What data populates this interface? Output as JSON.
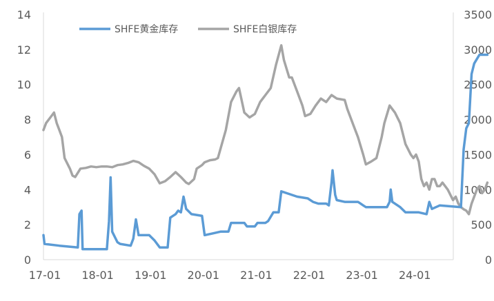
{
  "chart_data": {
    "type": "line",
    "x_ticks": [
      "17-01",
      "18-01",
      "19-01",
      "20-01",
      "21-01",
      "22-01",
      "23-01",
      "24-01"
    ],
    "y_left": {
      "ticks": [
        "0",
        "2",
        "4",
        "6",
        "8",
        "10",
        "12",
        "14"
      ],
      "min": 0,
      "max": 14
    },
    "y_right": {
      "ticks": [
        "0",
        "500",
        "1000",
        "1500",
        "2000",
        "2500",
        "3000",
        "3500"
      ],
      "min": 0,
      "max": 3500
    },
    "grid": false,
    "legend_position": "top",
    "series": [
      {
        "name": "SHFE黄金库存",
        "axis": "left",
        "color": "#5B9BD5",
        "points": [
          [
            0.0,
            1.4
          ],
          [
            0.02,
            0.9
          ],
          [
            0.3,
            0.8
          ],
          [
            0.65,
            0.7
          ],
          [
            0.68,
            2.6
          ],
          [
            0.72,
            2.8
          ],
          [
            0.74,
            0.6
          ],
          [
            1.2,
            0.6
          ],
          [
            1.24,
            2.2
          ],
          [
            1.27,
            4.7
          ],
          [
            1.3,
            1.6
          ],
          [
            1.4,
            1.0
          ],
          [
            1.45,
            0.9
          ],
          [
            1.65,
            0.8
          ],
          [
            1.7,
            1.2
          ],
          [
            1.75,
            2.3
          ],
          [
            1.8,
            1.4
          ],
          [
            2.0,
            1.4
          ],
          [
            2.1,
            1.1
          ],
          [
            2.2,
            0.7
          ],
          [
            2.35,
            0.7
          ],
          [
            2.4,
            2.4
          ],
          [
            2.5,
            2.6
          ],
          [
            2.55,
            2.8
          ],
          [
            2.6,
            2.7
          ],
          [
            2.65,
            3.6
          ],
          [
            2.7,
            2.9
          ],
          [
            2.8,
            2.6
          ],
          [
            3.0,
            2.5
          ],
          [
            3.05,
            1.4
          ],
          [
            3.2,
            1.5
          ],
          [
            3.35,
            1.6
          ],
          [
            3.5,
            1.6
          ],
          [
            3.55,
            2.1
          ],
          [
            3.8,
            2.1
          ],
          [
            3.85,
            1.9
          ],
          [
            4.0,
            1.9
          ],
          [
            4.05,
            2.1
          ],
          [
            4.2,
            2.1
          ],
          [
            4.25,
            2.2
          ],
          [
            4.35,
            2.7
          ],
          [
            4.45,
            2.7
          ],
          [
            4.5,
            3.9
          ],
          [
            4.6,
            3.8
          ],
          [
            4.8,
            3.6
          ],
          [
            5.0,
            3.5
          ],
          [
            5.1,
            3.3
          ],
          [
            5.2,
            3.2
          ],
          [
            5.35,
            3.2
          ],
          [
            5.4,
            3.1
          ],
          [
            5.45,
            4.4
          ],
          [
            5.47,
            5.1
          ],
          [
            5.52,
            3.7
          ],
          [
            5.55,
            3.4
          ],
          [
            5.7,
            3.3
          ],
          [
            5.95,
            3.3
          ],
          [
            6.0,
            3.2
          ],
          [
            6.05,
            3.1
          ],
          [
            6.1,
            3.0
          ],
          [
            6.5,
            3.0
          ],
          [
            6.55,
            3.3
          ],
          [
            6.57,
            4.0
          ],
          [
            6.6,
            3.3
          ],
          [
            6.75,
            3.0
          ],
          [
            6.85,
            2.7
          ],
          [
            7.1,
            2.7
          ],
          [
            7.25,
            2.6
          ],
          [
            7.3,
            3.3
          ],
          [
            7.35,
            2.9
          ],
          [
            7.5,
            3.1
          ],
          [
            7.9,
            3.0
          ],
          [
            7.95,
            6.3
          ],
          [
            8.0,
            7.5
          ],
          [
            8.05,
            7.8
          ],
          [
            8.1,
            10.6
          ],
          [
            8.15,
            11.2
          ],
          [
            8.25,
            11.7
          ],
          [
            8.4,
            11.7
          ]
        ]
      },
      {
        "name": "SHFE白银库存",
        "axis": "right",
        "color": "#A5A5A5",
        "points": [
          [
            0.0,
            1850
          ],
          [
            0.05,
            1950
          ],
          [
            0.15,
            2050
          ],
          [
            0.2,
            2100
          ],
          [
            0.25,
            1950
          ],
          [
            0.3,
            1850
          ],
          [
            0.35,
            1750
          ],
          [
            0.4,
            1450
          ],
          [
            0.5,
            1300
          ],
          [
            0.55,
            1200
          ],
          [
            0.6,
            1180
          ],
          [
            0.7,
            1300
          ],
          [
            0.8,
            1310
          ],
          [
            0.9,
            1330
          ],
          [
            1.0,
            1320
          ],
          [
            1.1,
            1330
          ],
          [
            1.2,
            1330
          ],
          [
            1.3,
            1320
          ],
          [
            1.4,
            1350
          ],
          [
            1.5,
            1360
          ],
          [
            1.6,
            1380
          ],
          [
            1.7,
            1410
          ],
          [
            1.8,
            1390
          ],
          [
            1.9,
            1340
          ],
          [
            2.0,
            1300
          ],
          [
            2.1,
            1220
          ],
          [
            2.2,
            1090
          ],
          [
            2.3,
            1120
          ],
          [
            2.4,
            1180
          ],
          [
            2.5,
            1250
          ],
          [
            2.6,
            1180
          ],
          [
            2.7,
            1100
          ],
          [
            2.75,
            1080
          ],
          [
            2.85,
            1150
          ],
          [
            2.9,
            1300
          ],
          [
            3.0,
            1350
          ],
          [
            3.05,
            1390
          ],
          [
            3.15,
            1420
          ],
          [
            3.25,
            1430
          ],
          [
            3.3,
            1450
          ],
          [
            3.45,
            1850
          ],
          [
            3.55,
            2250
          ],
          [
            3.65,
            2400
          ],
          [
            3.7,
            2450
          ],
          [
            3.8,
            2100
          ],
          [
            3.9,
            2030
          ],
          [
            4.0,
            2080
          ],
          [
            4.1,
            2250
          ],
          [
            4.2,
            2350
          ],
          [
            4.3,
            2450
          ],
          [
            4.4,
            2780
          ],
          [
            4.5,
            3060
          ],
          [
            4.55,
            2850
          ],
          [
            4.65,
            2600
          ],
          [
            4.7,
            2600
          ],
          [
            4.8,
            2400
          ],
          [
            4.9,
            2200
          ],
          [
            4.95,
            2050
          ],
          [
            5.05,
            2080
          ],
          [
            5.15,
            2200
          ],
          [
            5.25,
            2300
          ],
          [
            5.35,
            2250
          ],
          [
            5.45,
            2350
          ],
          [
            5.55,
            2300
          ],
          [
            5.7,
            2280
          ],
          [
            5.75,
            2150
          ],
          [
            5.85,
            1950
          ],
          [
            5.95,
            1750
          ],
          [
            6.05,
            1500
          ],
          [
            6.1,
            1360
          ],
          [
            6.2,
            1400
          ],
          [
            6.3,
            1450
          ],
          [
            6.4,
            1750
          ],
          [
            6.45,
            1950
          ],
          [
            6.55,
            2200
          ],
          [
            6.65,
            2100
          ],
          [
            6.75,
            1950
          ],
          [
            6.85,
            1650
          ],
          [
            6.95,
            1500
          ],
          [
            7.0,
            1450
          ],
          [
            7.05,
            1500
          ],
          [
            7.1,
            1400
          ],
          [
            7.15,
            1150
          ],
          [
            7.2,
            1050
          ],
          [
            7.25,
            1100
          ],
          [
            7.3,
            1000
          ],
          [
            7.35,
            1150
          ],
          [
            7.4,
            1150
          ],
          [
            7.45,
            1050
          ],
          [
            7.5,
            1050
          ],
          [
            7.55,
            1100
          ],
          [
            7.65,
            1000
          ],
          [
            7.75,
            850
          ],
          [
            7.8,
            900
          ],
          [
            7.85,
            800
          ],
          [
            7.9,
            750
          ],
          [
            7.95,
            720
          ],
          [
            8.0,
            700
          ],
          [
            8.05,
            650
          ],
          [
            8.1,
            800
          ],
          [
            8.15,
            900
          ],
          [
            8.2,
            1000
          ],
          [
            8.25,
            1050
          ],
          [
            8.3,
            950
          ],
          [
            8.35,
            1000
          ],
          [
            8.4,
            1100
          ]
        ]
      }
    ]
  }
}
